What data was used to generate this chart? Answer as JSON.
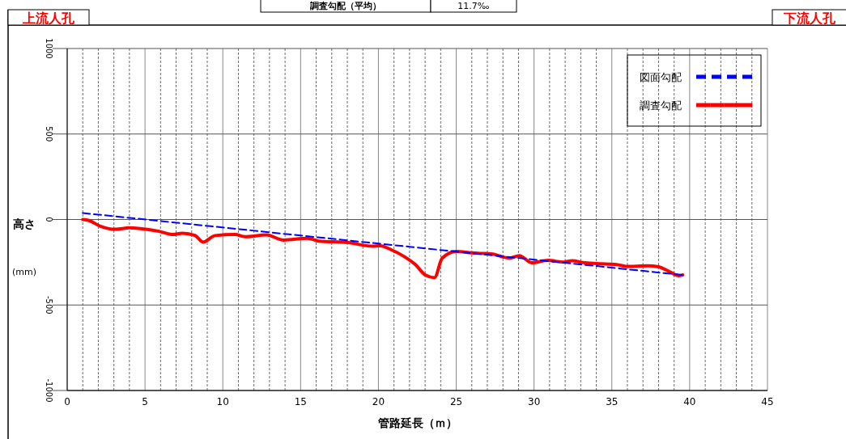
{
  "chart_data": {
    "type": "line",
    "xlabel": "管路延長（ｍ）",
    "ylabel": "高さ\n(mm)",
    "xlim": [
      0,
      45
    ],
    "xticks": [
      0,
      5,
      10,
      15,
      20,
      25,
      30,
      35,
      40,
      45
    ],
    "ylim": [
      -1000,
      1000
    ],
    "yticks": [
      -1000,
      -500,
      0,
      500,
      1000
    ],
    "grid": true,
    "legend": "top right",
    "annotations": [
      "上流人孔",
      "下流人孔",
      "調査勾配（平均）",
      "11.7‰"
    ],
    "series": [
      {
        "name": "図面勾配",
        "color": "#0000ff",
        "line_style": "dashed",
        "x": [
          1,
          39.5
        ],
        "values": [
          38,
          -324
        ]
      },
      {
        "name": "調査勾配",
        "color": "#ff0000",
        "line_style": "solid",
        "x": [
          1,
          1.4,
          2.1,
          3.1,
          4.0,
          5.05,
          5.9,
          6.8,
          7.4,
          8.2,
          8.74,
          9.5,
          10.8,
          11.4,
          12.8,
          13.9,
          15.45,
          16.15,
          18.05,
          19.6,
          20.1,
          20.8,
          21.7,
          22.4,
          23.0,
          23.6,
          24.1,
          25.0,
          26.0,
          26.55,
          27.25,
          28.45,
          29.05,
          29.85,
          30.9,
          31.9,
          32.45,
          33.15,
          34.0,
          35.3,
          35.9,
          37.3,
          38.0,
          38.7,
          39.3,
          39.55
        ],
        "values": [
          0,
          -6,
          -38,
          -57,
          -49,
          -57,
          -69,
          -88,
          -80,
          -93,
          -132,
          -94,
          -88,
          -101,
          -90,
          -120,
          -110,
          -126,
          -135,
          -156,
          -154,
          -176,
          -219,
          -266,
          -324,
          -340,
          -226,
          -187,
          -195,
          -198,
          -201,
          -226,
          -211,
          -253,
          -239,
          -249,
          -241,
          -252,
          -258,
          -263,
          -274,
          -271,
          -277,
          -305,
          -329,
          -324
        ]
      }
    ]
  }
}
